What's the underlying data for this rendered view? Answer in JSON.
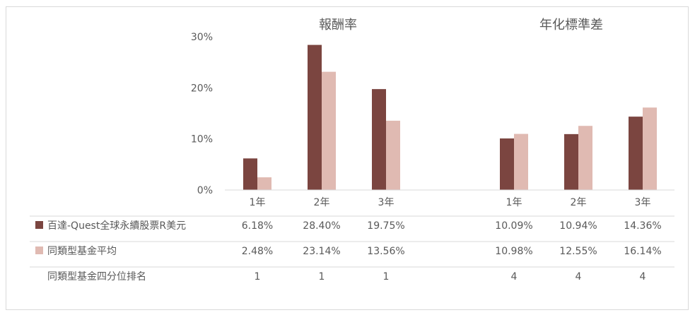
{
  "chart_data": {
    "type": "bar",
    "groups": [
      {
        "title": "報酬率",
        "categories": [
          "1年",
          "2年",
          "3年"
        ]
      },
      {
        "title": "年化標準差",
        "categories": [
          "1年",
          "2年",
          "3年"
        ]
      }
    ],
    "yaxis": {
      "min": 0,
      "max": 30,
      "ticks": [
        "0%",
        "10%",
        "20%",
        "30%"
      ]
    },
    "series": [
      {
        "name": "百達-Quest全球永續股票R美元",
        "color": "#7b4540",
        "values": [
          6.18,
          28.4,
          19.75,
          10.09,
          10.94,
          14.36
        ],
        "labels": [
          "6.18%",
          "28.40%",
          "19.75%",
          "10.09%",
          "10.94%",
          "14.36%"
        ]
      },
      {
        "name": "同類型基金平均",
        "color": "#e0bab2",
        "values": [
          2.48,
          23.14,
          13.56,
          10.98,
          12.55,
          16.14
        ],
        "labels": [
          "2.48%",
          "23.14%",
          "13.56%",
          "10.98%",
          "12.55%",
          "16.14%"
        ]
      }
    ],
    "rank_row": {
      "name": "同類型基金四分位排名",
      "values": [
        "1",
        "1",
        "1",
        "4",
        "4",
        "4"
      ]
    },
    "grid": false,
    "legend": "table-left"
  }
}
